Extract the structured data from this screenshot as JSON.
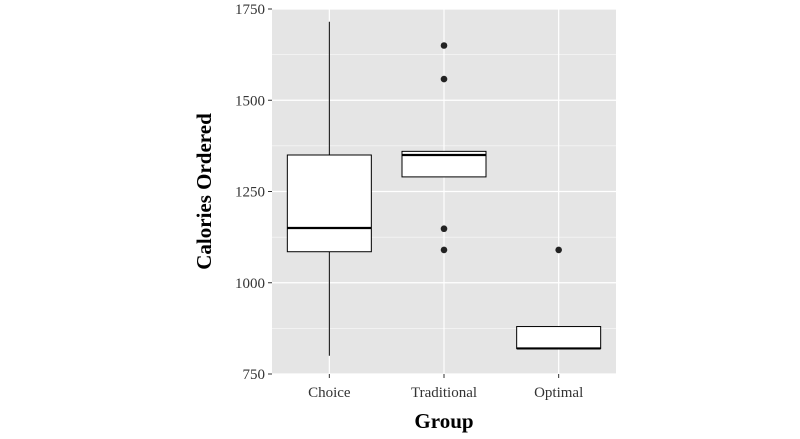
{
  "chart_data": {
    "type": "boxplot",
    "xlabel": "Group",
    "ylabel": "Calories Ordered",
    "ylim": [
      750,
      1750
    ],
    "yticks": [
      750,
      1000,
      1250,
      1500,
      1750
    ],
    "categories": [
      "Choice",
      "Traditional",
      "Optimal"
    ],
    "boxes": [
      {
        "category": "Choice",
        "whisker_low": 800,
        "q1": 1085,
        "median": 1150,
        "q3": 1350,
        "whisker_high": 1715,
        "outliers": []
      },
      {
        "category": "Traditional",
        "whisker_low": 1290,
        "q1": 1290,
        "median": 1350,
        "q3": 1360,
        "whisker_high": 1360,
        "outliers": [
          1090,
          1148,
          1558,
          1650
        ]
      },
      {
        "category": "Optimal",
        "whisker_low": 820,
        "q1": 820,
        "median": 820,
        "q3": 880,
        "whisker_high": 880,
        "outliers": [
          1090
        ]
      }
    ],
    "grid": true,
    "panel_color": "#e5e5e5",
    "grid_color": "#ffffff",
    "box_fill": "#ffffff",
    "box_stroke": "#000000",
    "outlier_color": "#222222"
  }
}
